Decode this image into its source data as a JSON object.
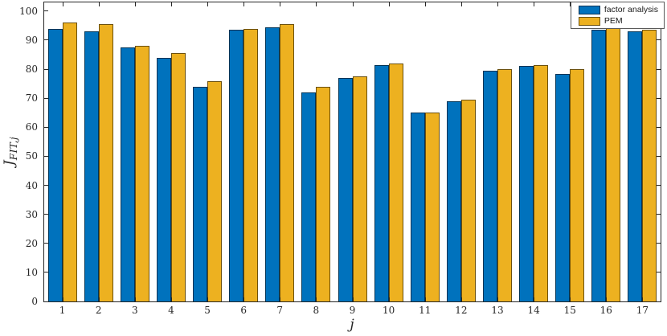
{
  "figure": {
    "xlabel": "j",
    "ylabel_main": "J",
    "ylabel_sub": "FIT,j"
  },
  "chart_data": {
    "type": "bar",
    "title": "",
    "xlabel": "j",
    "ylabel": "J_FIT,j",
    "categories": [
      "1",
      "2",
      "3",
      "4",
      "5",
      "6",
      "7",
      "8",
      "9",
      "10",
      "11",
      "12",
      "13",
      "14",
      "15",
      "16",
      "17"
    ],
    "series": [
      {
        "name": "factor analysis",
        "color": "#0072BD",
        "values": [
          94,
          93,
          87.5,
          84,
          74,
          93.5,
          94.5,
          72,
          77,
          81.5,
          65,
          69,
          79.5,
          81,
          78.5,
          93.5,
          93
        ]
      },
      {
        "name": "PEM",
        "color": "#EDB120",
        "values": [
          96,
          95.5,
          88,
          85.5,
          76,
          94,
          95.5,
          74,
          77.5,
          82,
          65,
          69.5,
          80,
          81.5,
          80,
          94.5,
          93.5
        ]
      }
    ],
    "ylim": [
      0,
      103
    ],
    "yticks": [
      0,
      10,
      20,
      30,
      40,
      50,
      60,
      70,
      80,
      90,
      100
    ],
    "grid": false,
    "legend_position": "top-right",
    "axis_color": "#262626",
    "bar_edge_color": "rgba(0,0,0,0.55)"
  }
}
